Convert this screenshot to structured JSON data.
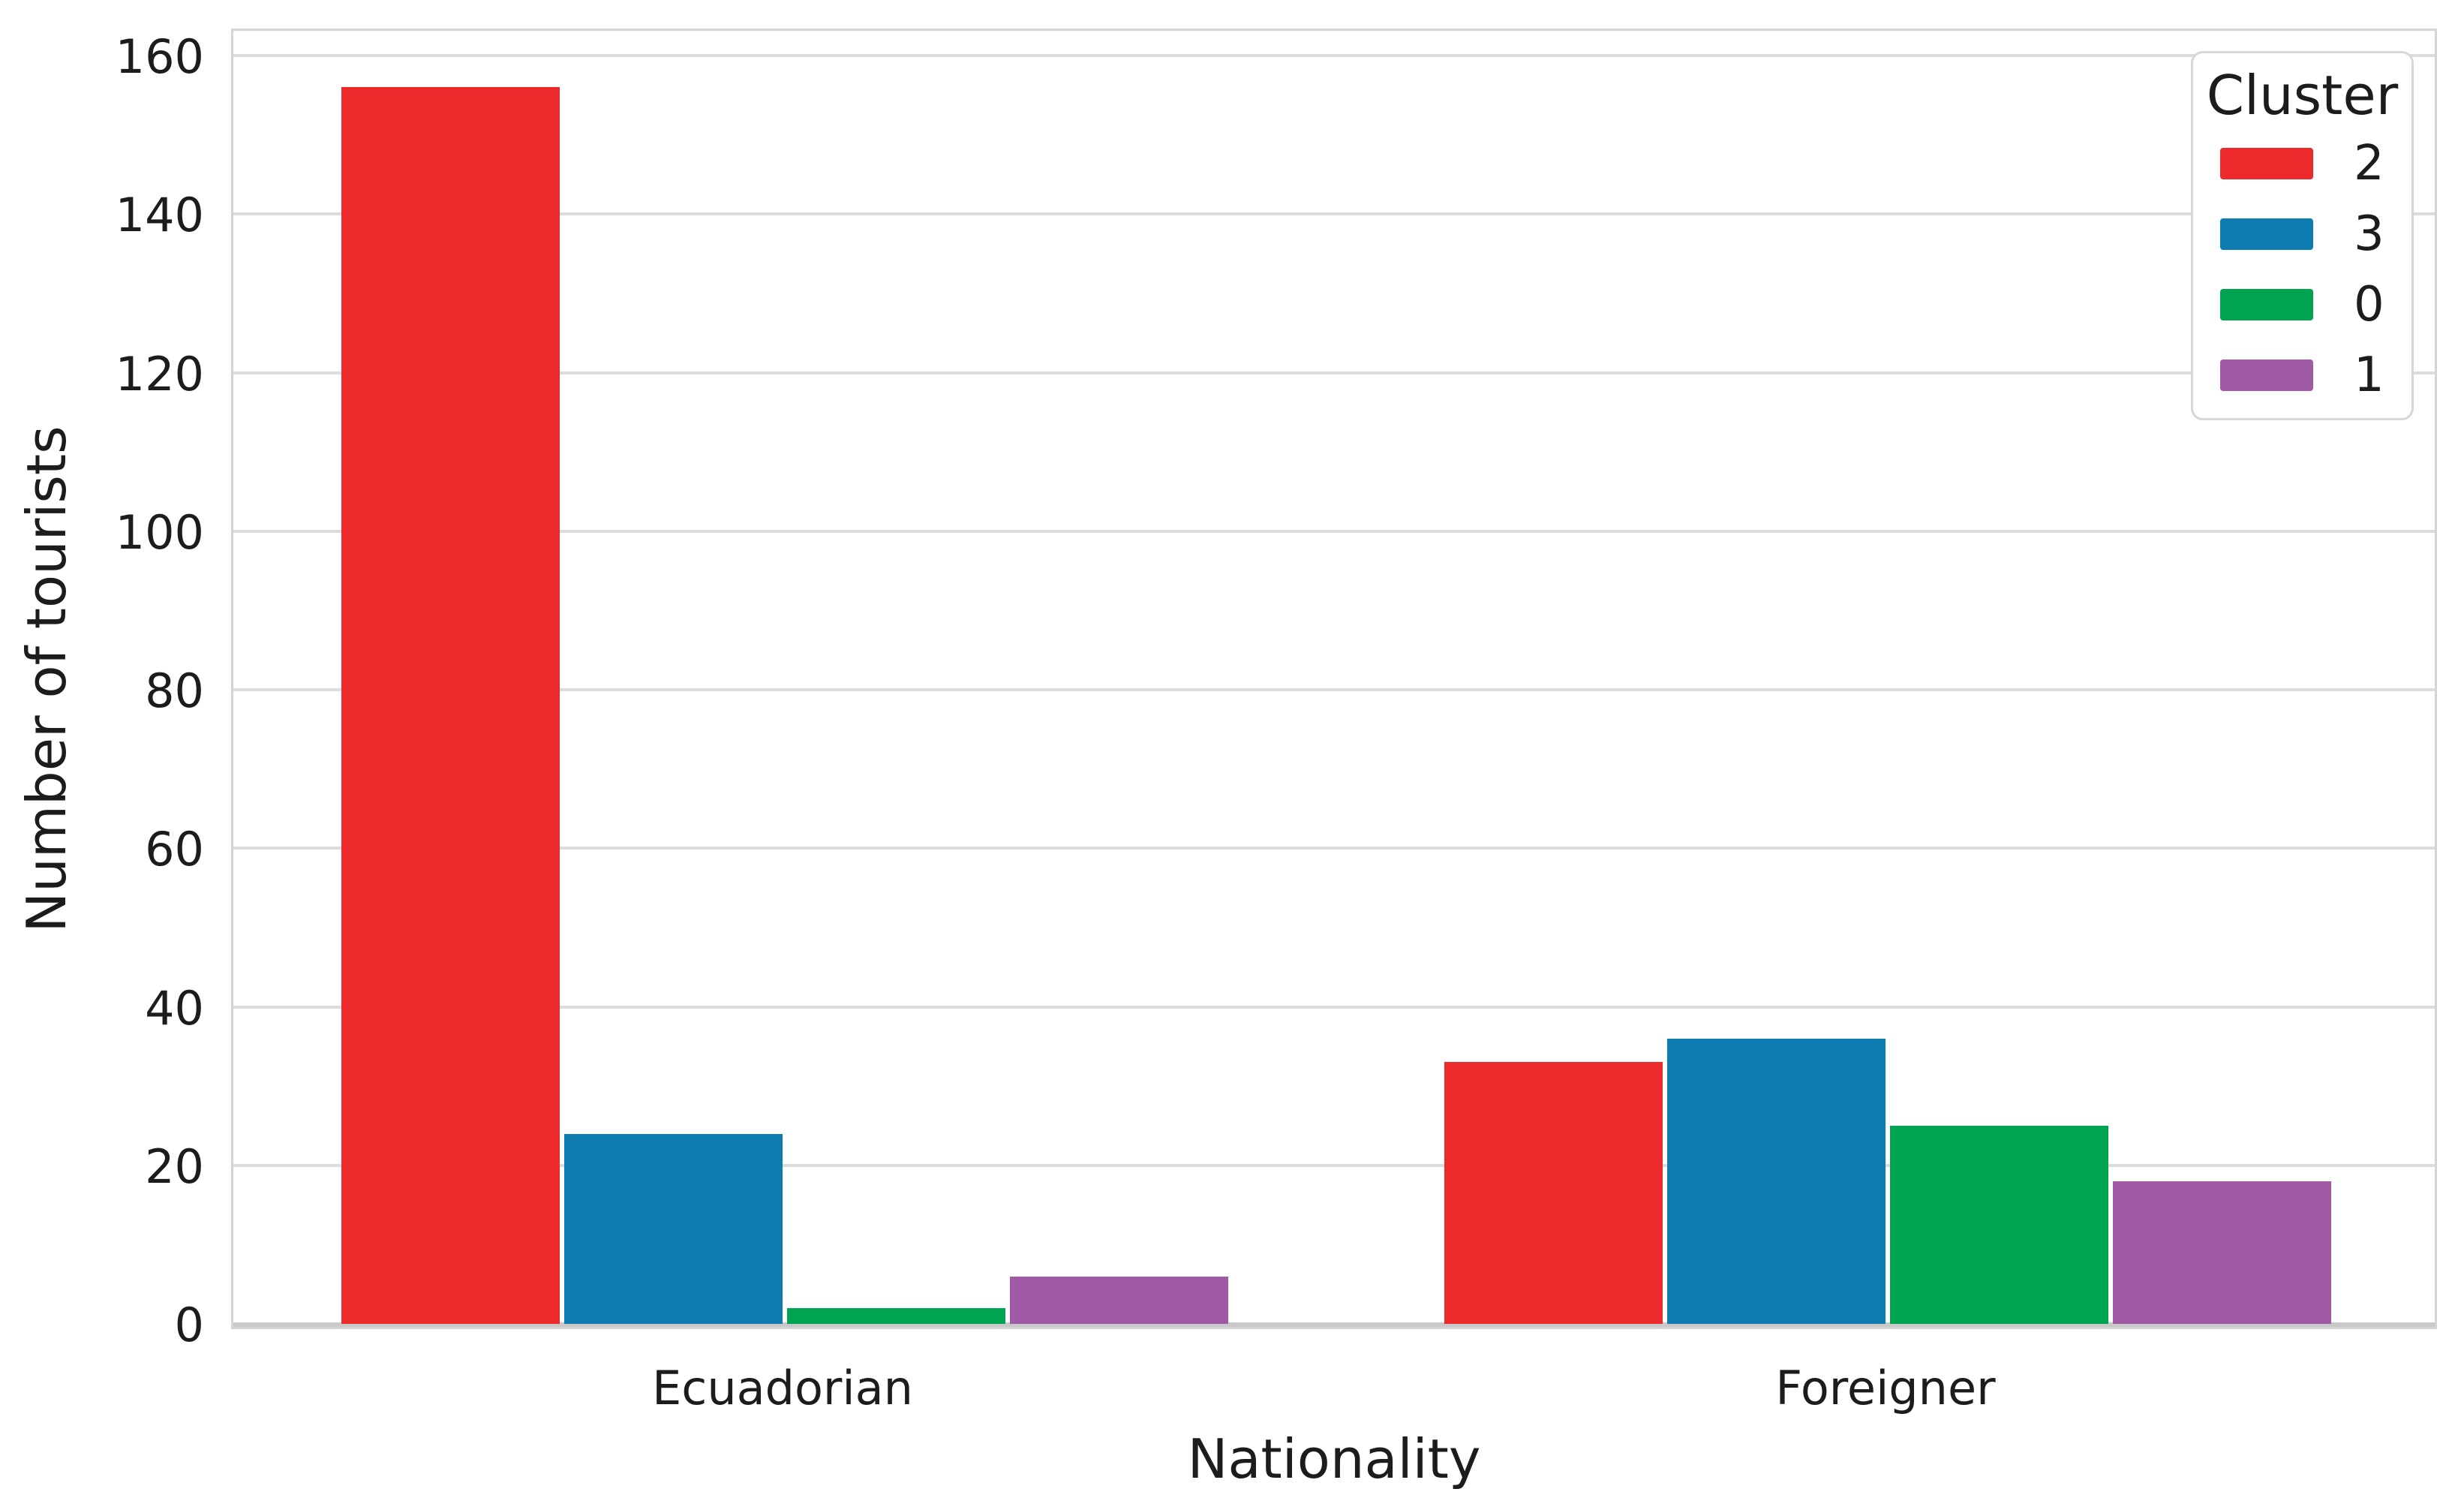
{
  "theme": {
    "background": "#ffffff",
    "grid_color": "#dcdcdc",
    "spine_color": "#d4d4d4",
    "axis_line_color": "#c9c9c9",
    "text_color": "#1c1c1c"
  },
  "chart_data": {
    "type": "bar",
    "title": "",
    "xlabel": "Nationality",
    "ylabel": "Number of tourists",
    "categories": [
      "Ecuadorian",
      "Foreigner"
    ],
    "series": [
      {
        "name": "2",
        "color": "#ed2a2b",
        "values": [
          156,
          33
        ]
      },
      {
        "name": "3",
        "color": "#0f7cb1",
        "values": [
          24,
          36
        ]
      },
      {
        "name": "0",
        "color": "#00a350",
        "values": [
          2,
          25
        ]
      },
      {
        "name": "1",
        "color": "#a15ba6",
        "values": [
          6,
          18
        ]
      }
    ],
    "yticks": [
      0,
      20,
      40,
      60,
      80,
      100,
      120,
      140,
      160
    ],
    "ylim": [
      0,
      163.5
    ],
    "grid": true,
    "legend": {
      "title": "Cluster",
      "position": "upper-right"
    }
  }
}
